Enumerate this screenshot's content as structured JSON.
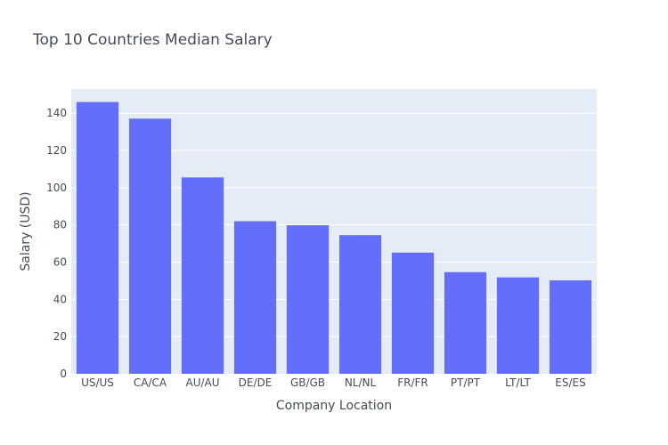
{
  "chart_data": {
    "type": "bar",
    "title": "Top 10 Countries Median Salary",
    "xlabel": "Company Location",
    "ylabel": "Salary (USD)",
    "categories": [
      "US/US",
      "CA/CA",
      "AU/AU",
      "DE/DE",
      "GB/GB",
      "NL/NL",
      "FR/FR",
      "PT/PT",
      "LT/LT",
      "ES/ES"
    ],
    "values": [
      146,
      137.1,
      105.5,
      82,
      79.8,
      74.5,
      65.1,
      54.6,
      51.8,
      50.2
    ],
    "ylim": [
      0,
      153
    ],
    "yticks": [
      0,
      20,
      40,
      60,
      80,
      100,
      120,
      140
    ],
    "grid": true,
    "colors": {
      "bar": "#636efa",
      "plot_bg": "#e5ecf6",
      "grid": "#ffffff",
      "text": "#444b5a"
    }
  }
}
